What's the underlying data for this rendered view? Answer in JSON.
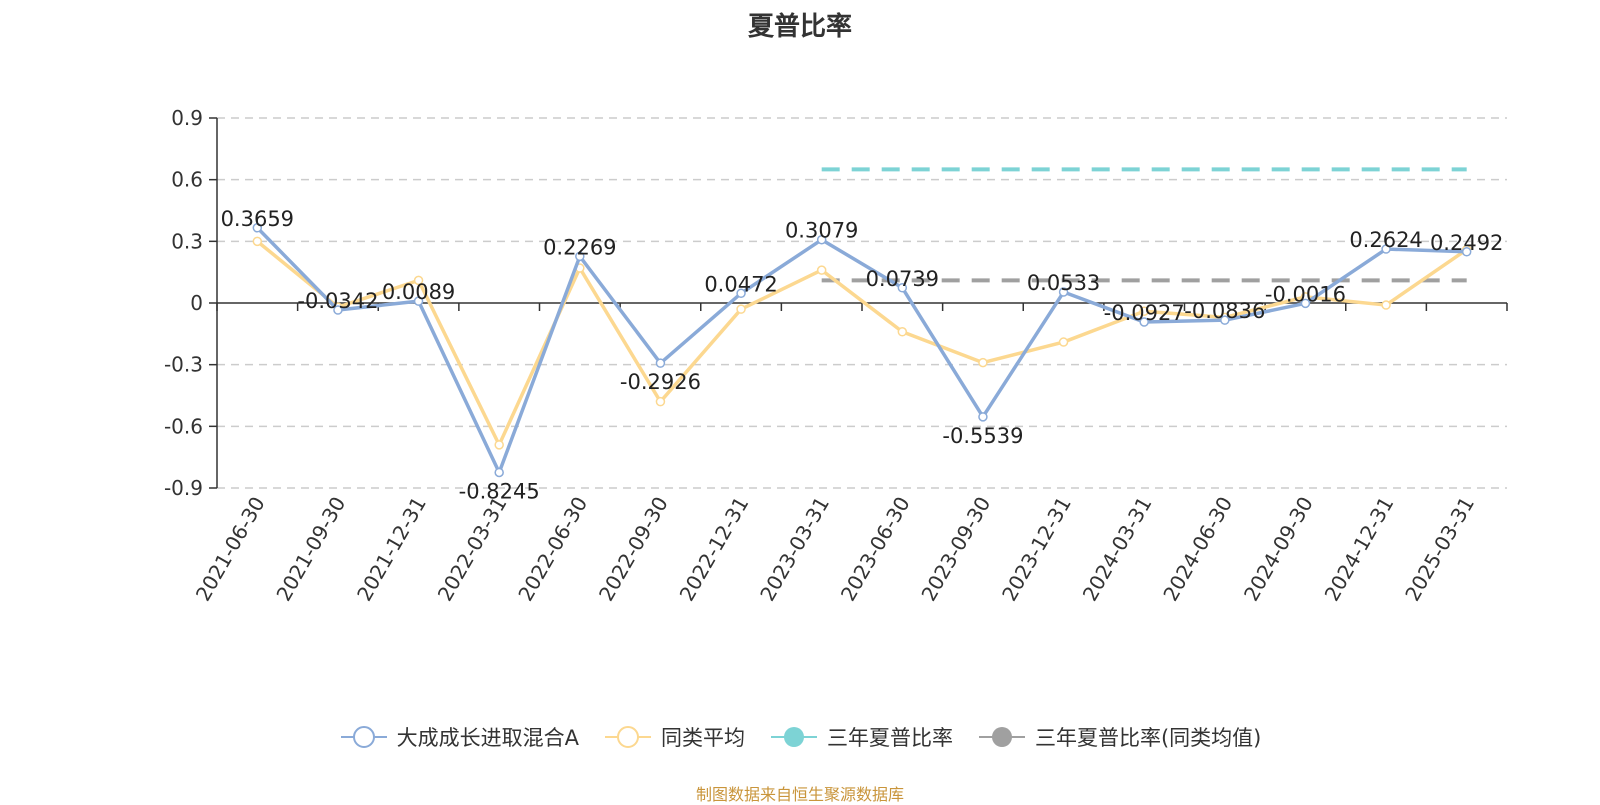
{
  "chart_data": {
    "type": "line",
    "title": "夏普比率",
    "categories": [
      "2021-06-30",
      "2021-09-30",
      "2021-12-31",
      "2022-03-31",
      "2022-06-30",
      "2022-09-30",
      "2022-12-31",
      "2023-03-31",
      "2023-06-30",
      "2023-09-30",
      "2023-12-31",
      "2024-03-31",
      "2024-06-30",
      "2024-09-30",
      "2024-12-31",
      "2025-03-31"
    ],
    "series": [
      {
        "name": "大成成长进取混合A",
        "color": "#8aaad8",
        "values": [
          0.3659,
          -0.0342,
          0.0089,
          -0.8245,
          0.2269,
          -0.2926,
          0.0472,
          0.3079,
          0.0739,
          -0.5539,
          0.0533,
          -0.0927,
          -0.0836,
          -0.0016,
          0.2624,
          0.2492
        ],
        "labels": [
          "0.3659",
          "-0.0342",
          "0.0089",
          "-0.8245",
          "0.2269",
          "-0.2926",
          "0.0472",
          "0.3079",
          "0.0739",
          "-0.5539",
          "0.0533",
          "-0.0927",
          "-0.0836",
          "-0.0016",
          "0.2624",
          "0.2492"
        ]
      },
      {
        "name": "同类平均",
        "color": "#fcd890",
        "values": [
          0.3,
          -0.02,
          0.11,
          -0.69,
          0.17,
          -0.48,
          -0.03,
          0.16,
          -0.14,
          -0.29,
          -0.19,
          -0.04,
          -0.07,
          0.03,
          -0.01,
          0.26
        ]
      }
    ],
    "reference_lines": [
      {
        "name": "三年夏普比率",
        "color": "#7dd3d5",
        "value": 0.65,
        "from": "2023-03-31",
        "to": "2025-03-31"
      },
      {
        "name": "三年夏普比率(同类均值)",
        "color": "#a0a0a0",
        "value": 0.11,
        "from": "2023-03-31",
        "to": "2025-03-31"
      }
    ],
    "yticks": [
      "0.9",
      "0.6",
      "0.3",
      "0",
      "-0.3",
      "-0.6",
      "-0.9"
    ],
    "ylim": [
      -0.9,
      0.9
    ],
    "grid": true,
    "legend": "bottom"
  },
  "source": "制图数据来自恒生聚源数据库"
}
